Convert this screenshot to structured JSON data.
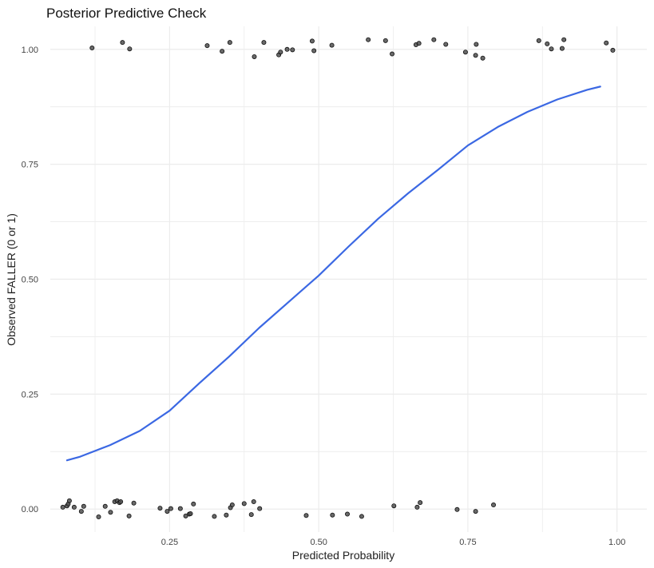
{
  "chart_data": {
    "type": "scatter",
    "title": "Posterior Predictive Check",
    "xlabel": "Predicted Probability",
    "ylabel": "Observed FALLER (0 or 1)",
    "xlim": [
      0.05,
      1.05
    ],
    "ylim": [
      -0.05,
      1.05
    ],
    "x_ticks": [
      0.25,
      0.5,
      0.75,
      1.0
    ],
    "x_tick_labels": [
      "0.25",
      "0.50",
      "0.75",
      "1.00"
    ],
    "y_ticks": [
      0.0,
      0.25,
      0.5,
      0.75,
      1.0
    ],
    "y_tick_labels": [
      "0.00",
      "0.25",
      "0.50",
      "0.75",
      "1.00"
    ],
    "grid": true,
    "points": [
      {
        "x": 0.12,
        "y": 1.003
      },
      {
        "x": 0.171,
        "y": 1.015
      },
      {
        "x": 0.183,
        "y": 1.001
      },
      {
        "x": 0.313,
        "y": 1.008
      },
      {
        "x": 0.338,
        "y": 0.996
      },
      {
        "x": 0.351,
        "y": 1.015
      },
      {
        "x": 0.408,
        "y": 1.015
      },
      {
        "x": 0.392,
        "y": 0.984
      },
      {
        "x": 0.433,
        "y": 0.988
      },
      {
        "x": 0.436,
        "y": 0.994
      },
      {
        "x": 0.447,
        "y": 1.0
      },
      {
        "x": 0.456,
        "y": 0.999
      },
      {
        "x": 0.489,
        "y": 1.018
      },
      {
        "x": 0.492,
        "y": 0.997
      },
      {
        "x": 0.522,
        "y": 1.009
      },
      {
        "x": 0.583,
        "y": 1.021
      },
      {
        "x": 0.612,
        "y": 1.019
      },
      {
        "x": 0.623,
        "y": 0.99
      },
      {
        "x": 0.663,
        "y": 1.01
      },
      {
        "x": 0.668,
        "y": 1.013
      },
      {
        "x": 0.693,
        "y": 1.021
      },
      {
        "x": 0.713,
        "y": 1.011
      },
      {
        "x": 0.746,
        "y": 0.994
      },
      {
        "x": 0.764,
        "y": 1.011
      },
      {
        "x": 0.763,
        "y": 0.987
      },
      {
        "x": 0.775,
        "y": 0.981
      },
      {
        "x": 0.869,
        "y": 1.019
      },
      {
        "x": 0.883,
        "y": 1.012
      },
      {
        "x": 0.89,
        "y": 1.001
      },
      {
        "x": 0.908,
        "y": 1.002
      },
      {
        "x": 0.911,
        "y": 1.021
      },
      {
        "x": 0.982,
        "y": 1.014
      },
      {
        "x": 0.993,
        "y": 0.998
      },
      {
        "x": 0.071,
        "y": 0.004
      },
      {
        "x": 0.078,
        "y": 0.007
      },
      {
        "x": 0.08,
        "y": 0.011
      },
      {
        "x": 0.082,
        "y": 0.018
      },
      {
        "x": 0.09,
        "y": 0.004
      },
      {
        "x": 0.102,
        "y": -0.005
      },
      {
        "x": 0.106,
        "y": 0.006
      },
      {
        "x": 0.131,
        "y": -0.017
      },
      {
        "x": 0.142,
        "y": 0.006
      },
      {
        "x": 0.151,
        "y": -0.007
      },
      {
        "x": 0.158,
        "y": 0.016
      },
      {
        "x": 0.162,
        "y": 0.018
      },
      {
        "x": 0.166,
        "y": 0.014
      },
      {
        "x": 0.168,
        "y": 0.016
      },
      {
        "x": 0.182,
        "y": -0.015
      },
      {
        "x": 0.19,
        "y": 0.013
      },
      {
        "x": 0.234,
        "y": 0.002
      },
      {
        "x": 0.246,
        "y": -0.005
      },
      {
        "x": 0.252,
        "y": 0.001
      },
      {
        "x": 0.268,
        "y": 0.001
      },
      {
        "x": 0.277,
        "y": -0.015
      },
      {
        "x": 0.283,
        "y": -0.011
      },
      {
        "x": 0.285,
        "y": -0.01
      },
      {
        "x": 0.29,
        "y": 0.011
      },
      {
        "x": 0.325,
        "y": -0.016
      },
      {
        "x": 0.345,
        "y": -0.013
      },
      {
        "x": 0.352,
        "y": 0.003
      },
      {
        "x": 0.355,
        "y": 0.009
      },
      {
        "x": 0.375,
        "y": 0.012
      },
      {
        "x": 0.387,
        "y": -0.012
      },
      {
        "x": 0.391,
        "y": 0.016
      },
      {
        "x": 0.401,
        "y": 0.001
      },
      {
        "x": 0.479,
        "y": -0.014
      },
      {
        "x": 0.523,
        "y": -0.013
      },
      {
        "x": 0.548,
        "y": -0.011
      },
      {
        "x": 0.572,
        "y": -0.016
      },
      {
        "x": 0.626,
        "y": 0.007
      },
      {
        "x": 0.665,
        "y": 0.004
      },
      {
        "x": 0.67,
        "y": 0.014
      },
      {
        "x": 0.732,
        "y": -0.001
      },
      {
        "x": 0.763,
        "y": -0.005
      },
      {
        "x": 0.793,
        "y": 0.009
      }
    ],
    "curve": [
      {
        "x": 0.078,
        "y": 0.106
      },
      {
        "x": 0.1,
        "y": 0.114
      },
      {
        "x": 0.15,
        "y": 0.139
      },
      {
        "x": 0.2,
        "y": 0.17
      },
      {
        "x": 0.25,
        "y": 0.214
      },
      {
        "x": 0.3,
        "y": 0.274
      },
      {
        "x": 0.35,
        "y": 0.332
      },
      {
        "x": 0.4,
        "y": 0.394
      },
      {
        "x": 0.45,
        "y": 0.451
      },
      {
        "x": 0.5,
        "y": 0.508
      },
      {
        "x": 0.55,
        "y": 0.571
      },
      {
        "x": 0.6,
        "y": 0.632
      },
      {
        "x": 0.65,
        "y": 0.687
      },
      {
        "x": 0.7,
        "y": 0.738
      },
      {
        "x": 0.75,
        "y": 0.791
      },
      {
        "x": 0.8,
        "y": 0.831
      },
      {
        "x": 0.85,
        "y": 0.864
      },
      {
        "x": 0.9,
        "y": 0.891
      },
      {
        "x": 0.95,
        "y": 0.912
      },
      {
        "x": 0.972,
        "y": 0.919
      }
    ],
    "styles": {
      "point_fill": "#4f4f4f",
      "point_stroke": "#111111",
      "curve_color": "#3b68e3",
      "grid_color": "#ececec",
      "background": "#ffffff"
    }
  }
}
